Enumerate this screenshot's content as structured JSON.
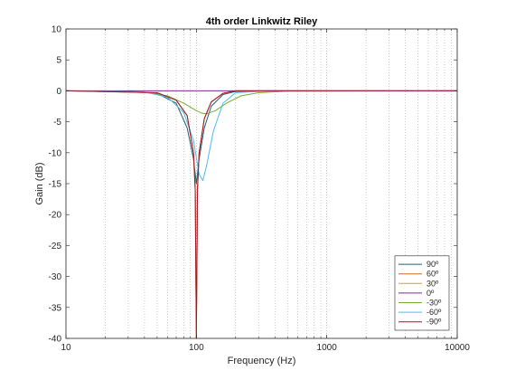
{
  "chart_data": {
    "type": "line",
    "title": "4th order Linkwitz Riley",
    "xlabel": "Frequency (Hz)",
    "ylabel": "Gain (dB)",
    "xscale": "log",
    "xlim": [
      10,
      10000
    ],
    "ylim": [
      -40,
      10
    ],
    "xticks": [
      "10",
      "100",
      "1000",
      "10000"
    ],
    "yticks": [
      "10",
      "5",
      "0",
      "-5",
      "-10",
      "-15",
      "-20",
      "-25",
      "-30",
      "-35",
      "-40"
    ],
    "grid": "x-minor dotted",
    "legend_position": "bottom-right",
    "series": [
      {
        "name": "90º",
        "color": "#1f5f7a",
        "x": [
          10,
          30,
          50,
          70,
          85,
          95,
          100,
          105,
          115,
          130,
          160,
          200,
          300,
          500,
          1000,
          10000
        ],
        "y": [
          0,
          -0.05,
          -0.4,
          -2,
          -6,
          -11,
          -15,
          -11,
          -6,
          -2.5,
          -0.6,
          -0.1,
          0,
          0,
          0,
          0
        ]
      },
      {
        "name": "60º",
        "color": "#d2691e",
        "x": [
          10,
          50,
          70,
          85,
          95,
          98,
          100,
          102,
          105,
          115,
          130,
          160,
          200,
          300,
          10000
        ],
        "y": [
          0,
          -0.3,
          -1.5,
          -4,
          -10,
          -16,
          -40,
          -16,
          -10,
          -4.5,
          -1.8,
          -0.4,
          0,
          0,
          0
        ]
      },
      {
        "name": "30º",
        "color": "#d4a017",
        "x": [
          10,
          50,
          70,
          85,
          95,
          98,
          100,
          102,
          105,
          115,
          130,
          160,
          200,
          300,
          10000
        ],
        "y": [
          0,
          -0.3,
          -1.5,
          -4,
          -10,
          -16,
          -40,
          -16,
          -10,
          -4.5,
          -1.8,
          -0.4,
          0,
          0,
          0
        ]
      },
      {
        "name": "0º",
        "color": "#7b2d8b",
        "x": [
          10,
          10000
        ],
        "y": [
          0,
          0
        ]
      },
      {
        "name": "-30º",
        "color": "#77ac30",
        "x": [
          10,
          40,
          60,
          80,
          100,
          110,
          120,
          140,
          170,
          220,
          300,
          500,
          10000
        ],
        "y": [
          0,
          -0.2,
          -0.8,
          -2,
          -3.2,
          -3.6,
          -3.7,
          -3.2,
          -2,
          -0.8,
          -0.3,
          -0.05,
          0
        ]
      },
      {
        "name": "-60º",
        "color": "#4dbeee",
        "x": [
          10,
          40,
          60,
          80,
          95,
          105,
          112,
          120,
          135,
          160,
          200,
          300,
          500,
          10000
        ],
        "y": [
          0,
          -0.2,
          -1,
          -3.5,
          -8,
          -13.5,
          -14.5,
          -12,
          -6.5,
          -2,
          -0.3,
          -0.1,
          0,
          0
        ]
      },
      {
        "name": "-90º",
        "color": "#a2142f",
        "x": [
          10,
          50,
          70,
          85,
          95,
          98,
          100,
          102,
          105,
          115,
          130,
          160,
          200,
          300,
          10000
        ],
        "y": [
          0,
          -0.3,
          -1.5,
          -4,
          -10,
          -16,
          -40,
          -16,
          -10,
          -4.5,
          -1.8,
          -0.4,
          0,
          0,
          0
        ]
      }
    ]
  }
}
